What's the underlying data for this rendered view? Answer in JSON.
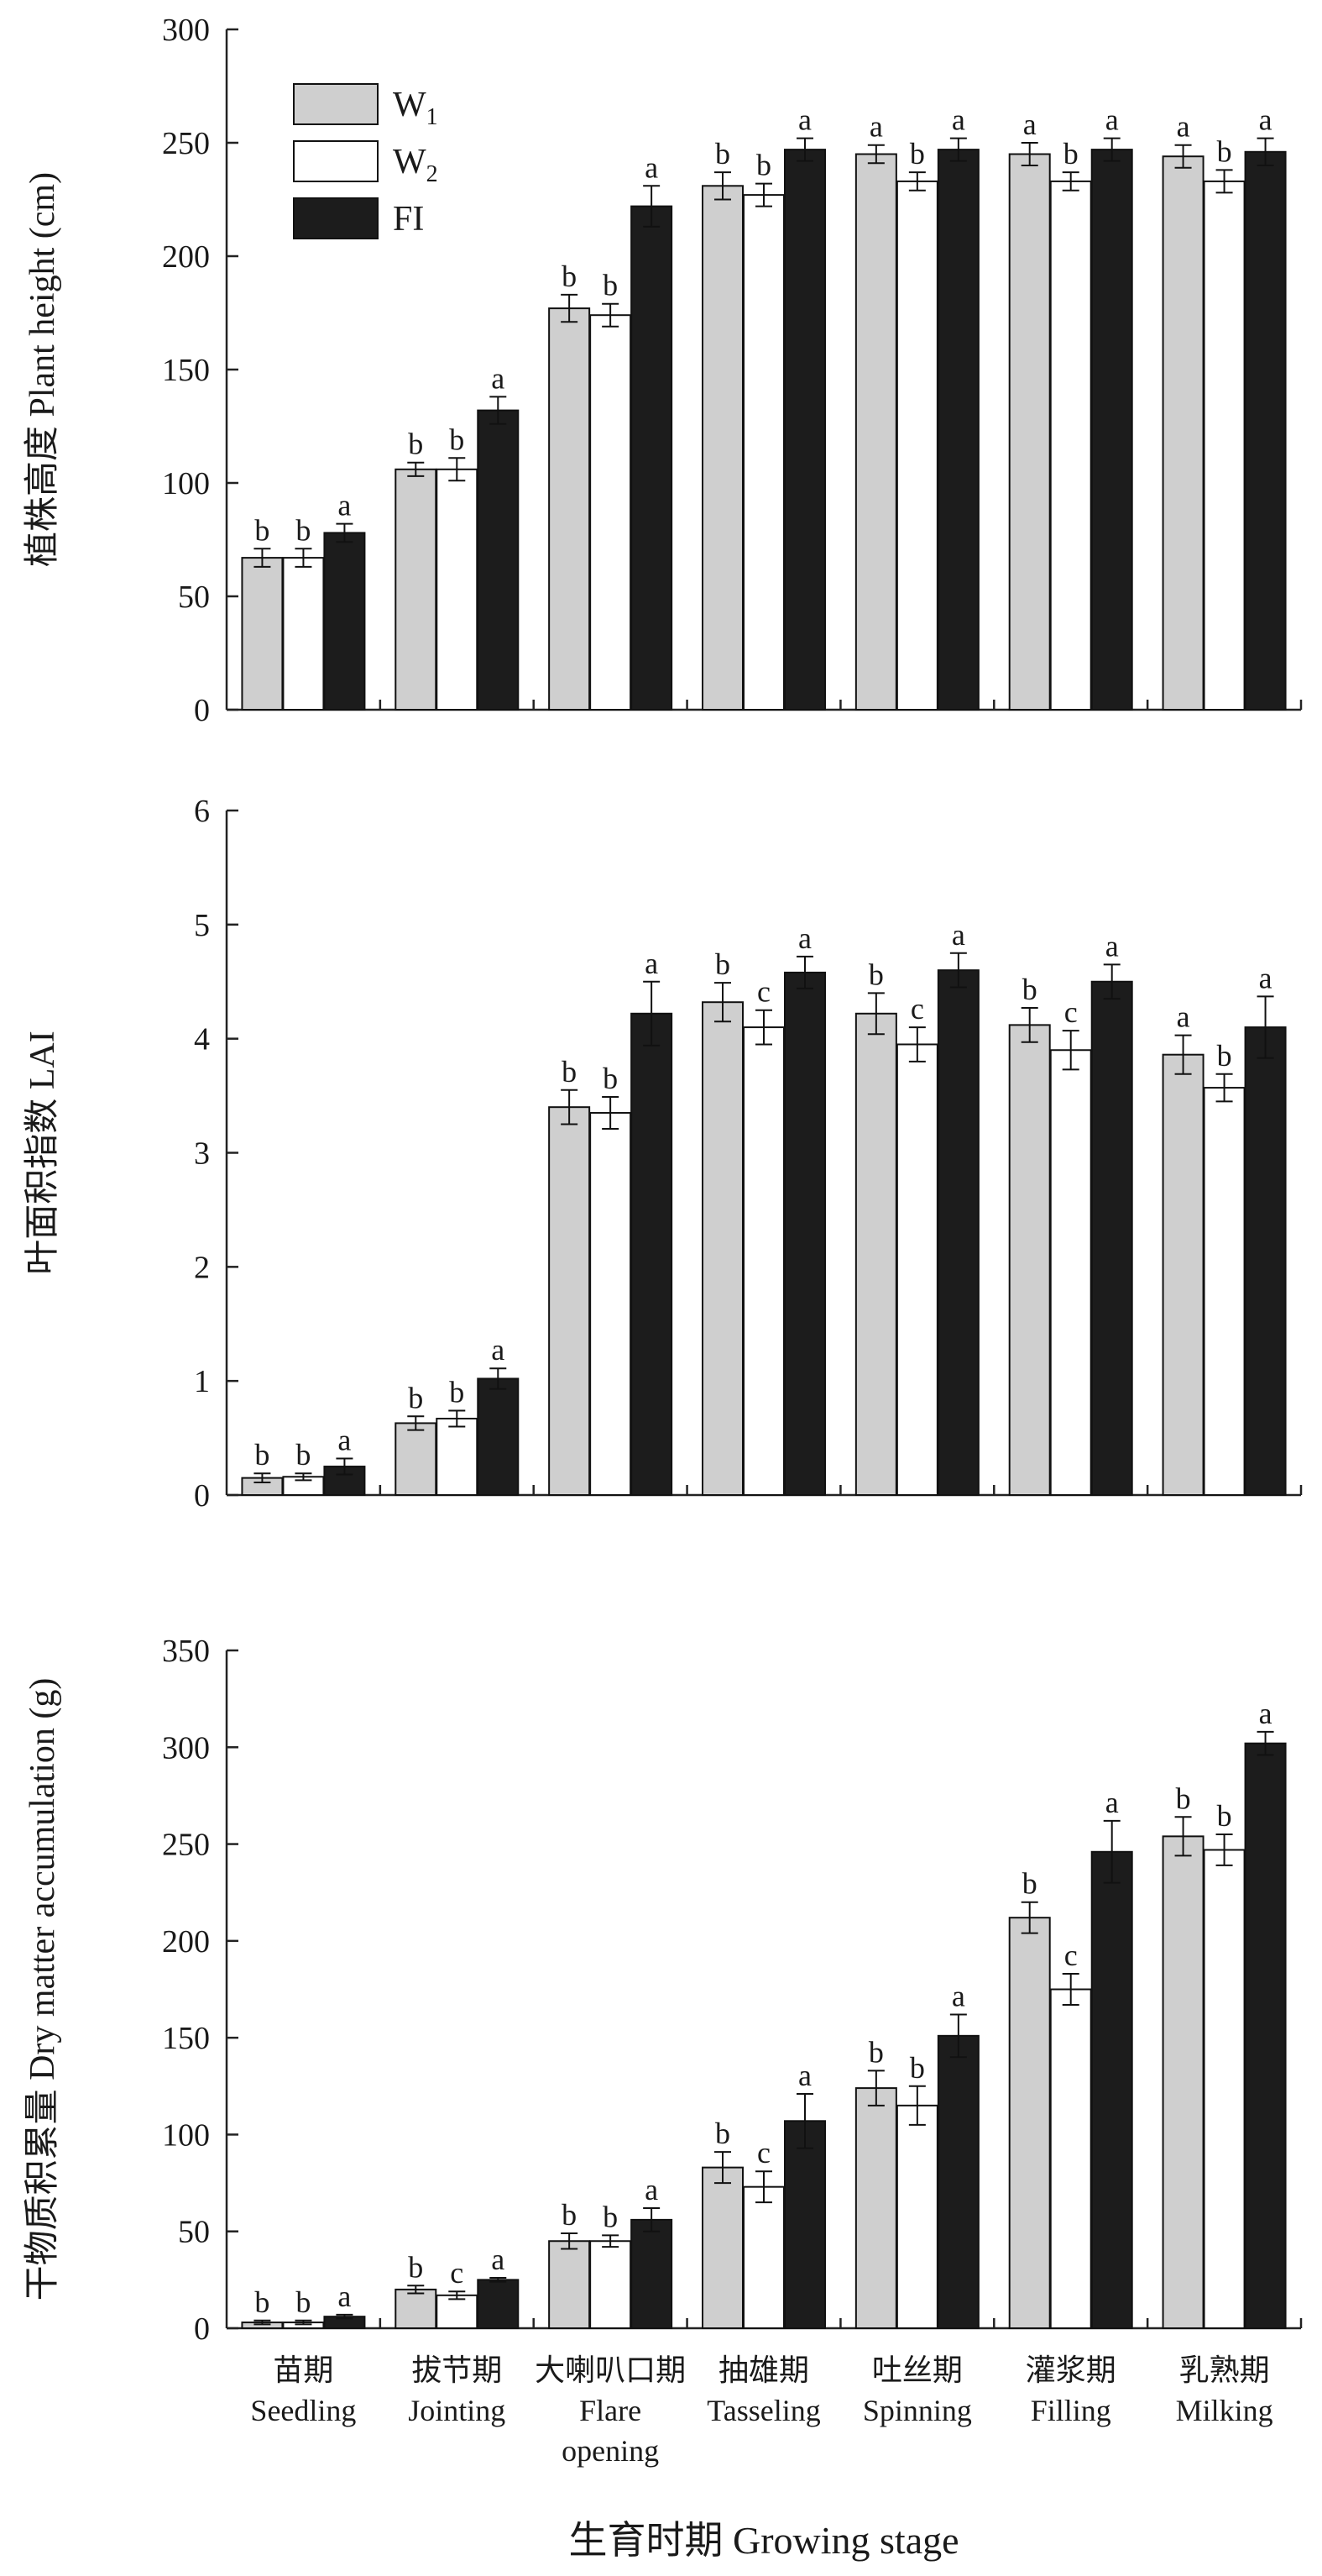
{
  "chart_data": [
    {
      "type": "bar",
      "ylabel": "植株高度 Plant height (cm)",
      "ylim": [
        0,
        300
      ],
      "yticks": [
        0,
        50,
        100,
        150,
        200,
        250,
        300
      ],
      "legend": {
        "placement": "top-left",
        "entries": [
          {
            "name": "W",
            "sub": "1"
          },
          {
            "name": "W",
            "sub": "2"
          },
          {
            "name": "FI",
            "sub": ""
          }
        ]
      },
      "series": [
        {
          "name": "W1",
          "color": "#cfcfcf",
          "values": [
            67,
            106,
            177,
            231,
            245,
            245,
            244
          ],
          "errors": [
            4,
            3,
            6,
            6,
            4,
            5,
            5
          ],
          "letters": [
            "b",
            "b",
            "b",
            "b",
            "a",
            "a",
            "a"
          ]
        },
        {
          "name": "W2",
          "color": "#ffffff",
          "values": [
            67,
            106,
            174,
            227,
            233,
            233,
            233
          ],
          "errors": [
            4,
            5,
            5,
            5,
            4,
            4,
            5
          ],
          "letters": [
            "b",
            "b",
            "b",
            "b",
            "b",
            "b",
            "b"
          ]
        },
        {
          "name": "FI",
          "color": "#1c1c1c",
          "values": [
            78,
            132,
            222,
            247,
            247,
            247,
            246
          ],
          "errors": [
            4,
            6,
            9,
            5,
            5,
            5,
            6
          ],
          "letters": [
            "a",
            "a",
            "a",
            "a",
            "a",
            "a",
            "a"
          ]
        }
      ]
    },
    {
      "type": "bar",
      "ylabel": "叶面积指数 LAI",
      "ylim": [
        0,
        6
      ],
      "yticks": [
        0,
        1,
        2,
        3,
        4,
        5,
        6
      ],
      "series": [
        {
          "name": "W1",
          "color": "#cfcfcf",
          "values": [
            0.15,
            0.63,
            3.4,
            4.32,
            4.22,
            4.12,
            3.86
          ],
          "errors": [
            0.04,
            0.06,
            0.15,
            0.17,
            0.18,
            0.15,
            0.17
          ],
          "letters": [
            "b",
            "b",
            "b",
            "b",
            "b",
            "b",
            "a"
          ]
        },
        {
          "name": "W2",
          "color": "#ffffff",
          "values": [
            0.16,
            0.67,
            3.35,
            4.1,
            3.95,
            3.9,
            3.57
          ],
          "errors": [
            0.03,
            0.07,
            0.14,
            0.15,
            0.15,
            0.17,
            0.12
          ],
          "letters": [
            "b",
            "b",
            "b",
            "c",
            "c",
            "c",
            "b"
          ]
        },
        {
          "name": "FI",
          "color": "#1c1c1c",
          "values": [
            0.25,
            1.02,
            4.22,
            4.58,
            4.6,
            4.5,
            4.1
          ],
          "errors": [
            0.07,
            0.09,
            0.28,
            0.14,
            0.15,
            0.15,
            0.27
          ],
          "letters": [
            "a",
            "a",
            "a",
            "a",
            "a",
            "a",
            "a"
          ]
        }
      ]
    },
    {
      "type": "bar",
      "ylabel": "干物质积累量 Dry matter accumulation (g)",
      "ylim": [
        0,
        350
      ],
      "yticks": [
        0,
        50,
        100,
        150,
        200,
        250,
        300,
        350
      ],
      "xlabel": "生育时期 Growing stage",
      "categories": [
        [
          "苗期",
          "Seedling"
        ],
        [
          "拔节期",
          "Jointing"
        ],
        [
          "大喇叭口期",
          "Flare",
          "opening"
        ],
        [
          "抽雄期",
          "Tasseling"
        ],
        [
          "吐丝期",
          "Spinning"
        ],
        [
          "灌浆期",
          "Filling"
        ],
        [
          "乳熟期",
          "Milking"
        ]
      ],
      "series": [
        {
          "name": "W1",
          "color": "#cfcfcf",
          "values": [
            3,
            20,
            45,
            83,
            124,
            212,
            254
          ],
          "errors": [
            1,
            2,
            4,
            8,
            9,
            8,
            10
          ],
          "letters": [
            "b",
            "b",
            "b",
            "b",
            "b",
            "b",
            "b"
          ]
        },
        {
          "name": "W2",
          "color": "#ffffff",
          "values": [
            3,
            17,
            45,
            73,
            115,
            175,
            247
          ],
          "errors": [
            1,
            2,
            3,
            8,
            10,
            8,
            8
          ],
          "letters": [
            "b",
            "c",
            "b",
            "c",
            "b",
            "c",
            "b"
          ]
        },
        {
          "name": "FI",
          "color": "#1c1c1c",
          "values": [
            6,
            25,
            56,
            107,
            151,
            246,
            302
          ],
          "errors": [
            1,
            1,
            6,
            14,
            11,
            16,
            6
          ],
          "letters": [
            "a",
            "a",
            "a",
            "a",
            "a",
            "a",
            "a"
          ]
        }
      ]
    }
  ]
}
